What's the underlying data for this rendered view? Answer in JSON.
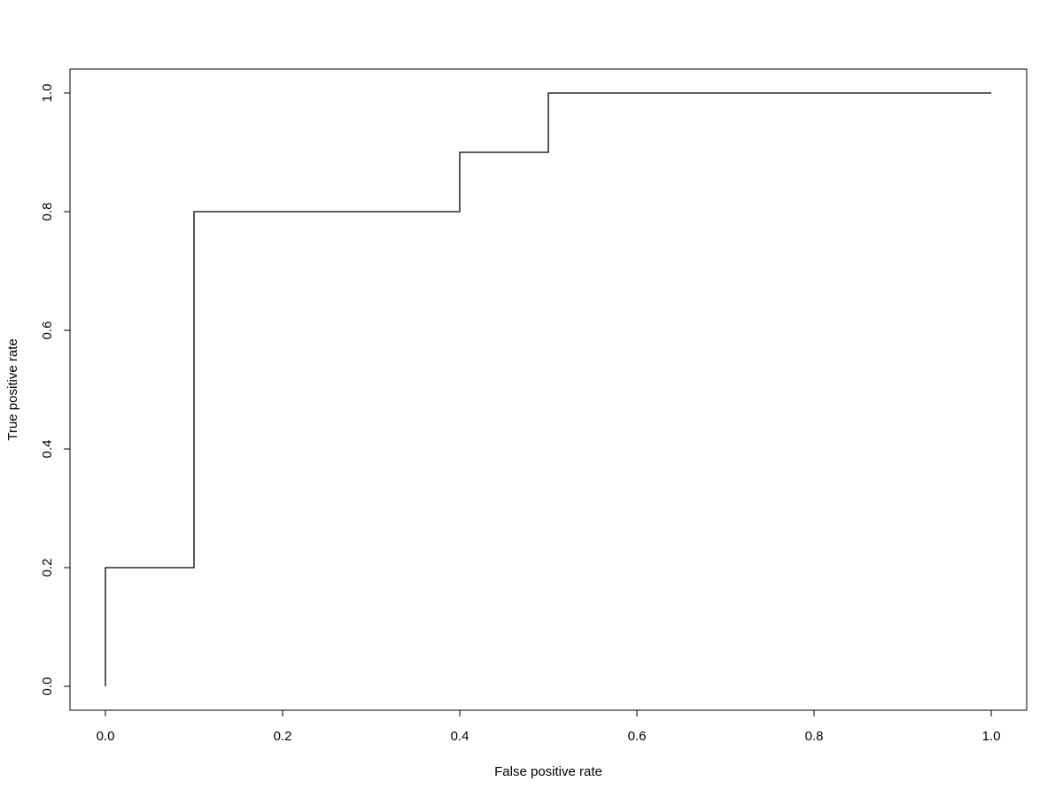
{
  "chart_data": {
    "type": "line",
    "title": "",
    "xlabel": "False positive rate",
    "ylabel": "True positive rate",
    "xlim": [
      0,
      1
    ],
    "ylim": [
      0,
      1
    ],
    "grid": false,
    "x_ticks": [
      "0.0",
      "0.2",
      "0.4",
      "0.6",
      "0.8",
      "1.0"
    ],
    "y_ticks": [
      "0.0",
      "0.2",
      "0.4",
      "0.6",
      "0.8",
      "1.0"
    ],
    "series": [
      {
        "color": "#000000",
        "x": [
          0.0,
          0.0,
          0.1,
          0.1,
          0.4,
          0.4,
          0.5,
          0.5,
          1.0
        ],
        "y": [
          0.0,
          0.2,
          0.2,
          0.8,
          0.8,
          0.9,
          0.9,
          1.0,
          1.0
        ]
      }
    ]
  }
}
